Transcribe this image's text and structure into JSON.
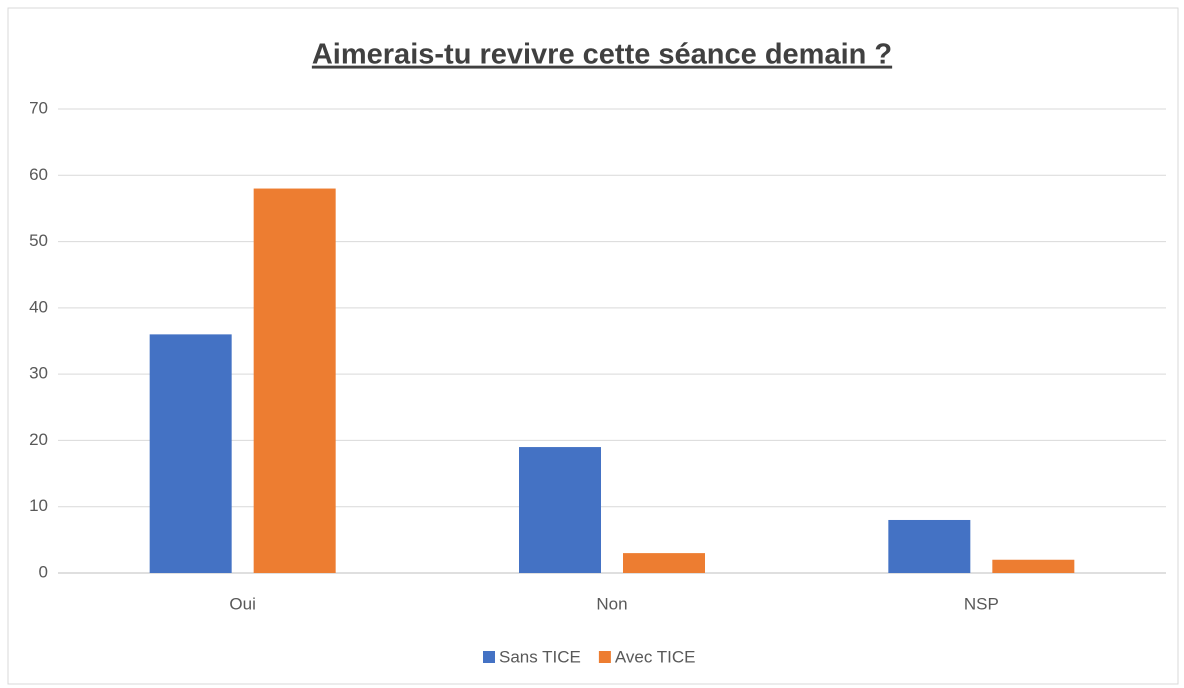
{
  "chart_data": {
    "type": "bar",
    "title": "Aimerais-tu revivre cette séance demain ?",
    "categories": [
      "Oui",
      "Non",
      "NSP"
    ],
    "series": [
      {
        "name": "Sans TICE",
        "color": "#4472c4",
        "values": [
          36,
          19,
          8
        ]
      },
      {
        "name": "Avec TICE",
        "color": "#ed7d31",
        "values": [
          58,
          3,
          2
        ]
      }
    ],
    "ylim": [
      0,
      70
    ],
    "yticks": [
      0,
      10,
      20,
      30,
      40,
      50,
      60,
      70
    ],
    "grid": true,
    "legend": "bottom"
  }
}
